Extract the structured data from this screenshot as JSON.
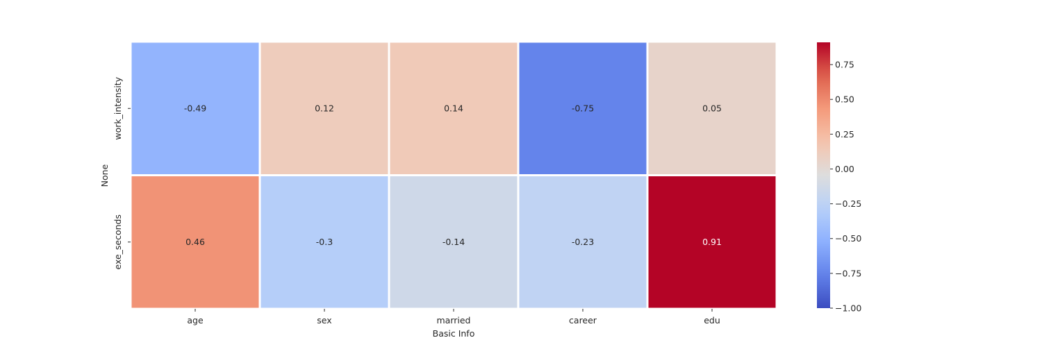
{
  "chart_data": {
    "type": "heatmap",
    "title": "",
    "xlabel": "Basic Info",
    "ylabel": "None",
    "x_categories": [
      "age",
      "sex",
      "married",
      "career",
      "edu"
    ],
    "y_categories": [
      "work_intensity",
      "exe_seconds"
    ],
    "values": [
      [
        -0.49,
        0.12,
        0.14,
        -0.75,
        0.05
      ],
      [
        0.46,
        -0.3,
        -0.14,
        -0.23,
        0.91
      ]
    ],
    "value_labels": [
      [
        "-0.49",
        "0.12",
        "0.14",
        "-0.75",
        "0.05"
      ],
      [
        "0.46",
        "-0.3",
        "-0.14",
        "-0.23",
        "0.91"
      ]
    ],
    "colormap": "coolwarm",
    "vmin": -1.0,
    "vmax": 0.91,
    "colorbar": {
      "ticks": [
        0.75,
        0.5,
        0.25,
        0.0,
        -0.25,
        -0.5,
        -0.75,
        -1.0
      ],
      "tick_labels": [
        "0.75",
        "0.50",
        "0.25",
        "0.00",
        "−0.25",
        "−0.50",
        "−0.75",
        "−1.00"
      ]
    },
    "grid": false,
    "cell_border_color": "#ffffff"
  }
}
